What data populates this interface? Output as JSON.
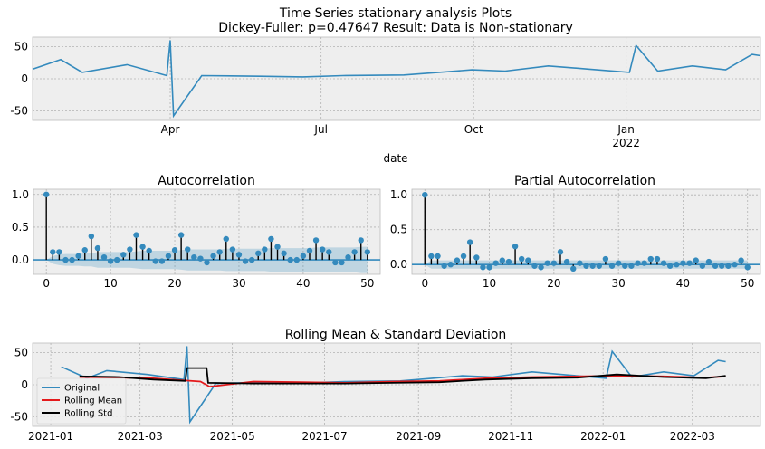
{
  "figure": {
    "suptitle_line1": "Time Series stationary analysis Plots",
    "suptitle_line2": "Dickey-Fuller: p=0.47647 Result: Data is Non-stationary"
  },
  "chart_data": [
    {
      "type": "line",
      "id": "timeseries",
      "title": "",
      "xlabel": "date",
      "ylabel": "",
      "x_range": [
        "2021-01-08",
        "2022-03-23"
      ],
      "ylim": [
        -65,
        65
      ],
      "yticks": [
        -50,
        0,
        50
      ],
      "xtick_labels": [
        {
          "date": "2021-04-01",
          "label": "Apr",
          "sublabel": ""
        },
        {
          "date": "2021-07-01",
          "label": "Jul",
          "sublabel": ""
        },
        {
          "date": "2021-10-01",
          "label": "Oct",
          "sublabel": ""
        },
        {
          "date": "2022-01-01",
          "label": "Jan",
          "sublabel": "2022"
        }
      ],
      "grid": true,
      "series": [
        {
          "name": "",
          "color": "#348abd",
          "x": [
            "2021-01-08",
            "2021-01-25",
            "2021-02-07",
            "2021-03-06",
            "2021-03-30",
            "2021-04-01",
            "2021-04-03",
            "2021-04-20",
            "2021-05-25",
            "2021-06-20",
            "2021-07-14",
            "2021-08-20",
            "2021-09-10",
            "2021-09-30",
            "2021-10-20",
            "2021-11-15",
            "2021-12-10",
            "2022-01-03",
            "2022-01-07",
            "2022-01-20",
            "2022-02-10",
            "2022-03-02",
            "2022-03-18",
            "2022-03-23"
          ],
          "y": [
            15,
            30,
            10,
            22,
            5,
            60,
            -58,
            5,
            4,
            3,
            5,
            6,
            10,
            14,
            12,
            20,
            15,
            10,
            52,
            12,
            20,
            14,
            38,
            36
          ]
        }
      ]
    },
    {
      "type": "stem",
      "id": "acf",
      "title": "Autocorrelation",
      "xlim": [
        -2,
        52
      ],
      "ylim": [
        -0.22,
        1.08
      ],
      "xticks": [
        0,
        10,
        20,
        30,
        40,
        50
      ],
      "yticks": [
        0.0,
        0.5,
        1.0
      ],
      "ytick_labels": [
        "0.0",
        "0.5",
        "1.0"
      ],
      "grid": true,
      "lags": [
        0,
        1,
        2,
        3,
        4,
        5,
        6,
        7,
        8,
        9,
        10,
        11,
        12,
        13,
        14,
        15,
        16,
        17,
        18,
        19,
        20,
        21,
        22,
        23,
        24,
        25,
        26,
        27,
        28,
        29,
        30,
        31,
        32,
        33,
        34,
        35,
        36,
        37,
        38,
        39,
        40,
        41,
        42,
        43,
        44,
        45,
        46,
        47,
        48,
        49,
        50
      ],
      "values": [
        1.0,
        0.12,
        0.12,
        0.0,
        0.0,
        0.06,
        0.15,
        0.36,
        0.18,
        0.04,
        -0.02,
        0.0,
        0.08,
        0.16,
        0.38,
        0.2,
        0.14,
        -0.02,
        -0.02,
        0.06,
        0.15,
        0.38,
        0.16,
        0.04,
        0.02,
        -0.04,
        0.06,
        0.12,
        0.32,
        0.16,
        0.08,
        -0.02,
        0.0,
        0.1,
        0.16,
        0.32,
        0.2,
        0.1,
        0.0,
        0.0,
        0.06,
        0.14,
        0.3,
        0.16,
        0.12,
        -0.04,
        -0.04,
        0.04,
        0.12,
        0.3,
        0.12
      ],
      "confint_upper": [
        0.0,
        0.06,
        0.08,
        0.09,
        0.09,
        0.09,
        0.1,
        0.1,
        0.12,
        0.12,
        0.12,
        0.12,
        0.12,
        0.12,
        0.13,
        0.14,
        0.14,
        0.14,
        0.14,
        0.14,
        0.14,
        0.15,
        0.16,
        0.16,
        0.16,
        0.16,
        0.16,
        0.16,
        0.17,
        0.17,
        0.17,
        0.17,
        0.17,
        0.17,
        0.17,
        0.18,
        0.18,
        0.18,
        0.18,
        0.18,
        0.18,
        0.18,
        0.19,
        0.19,
        0.19,
        0.19,
        0.19,
        0.19,
        0.19,
        0.2,
        0.2
      ],
      "color": "#348abd"
    },
    {
      "type": "stem",
      "id": "pacf",
      "title": "Partial Autocorrelation",
      "xlim": [
        -2,
        52
      ],
      "ylim": [
        -0.14,
        1.08
      ],
      "xticks": [
        0,
        10,
        20,
        30,
        40,
        50
      ],
      "yticks": [
        0.0,
        0.5,
        1.0
      ],
      "ytick_labels": [
        "0.0",
        "0.5",
        "1.0"
      ],
      "grid": true,
      "lags": [
        0,
        1,
        2,
        3,
        4,
        5,
        6,
        7,
        8,
        9,
        10,
        11,
        12,
        13,
        14,
        15,
        16,
        17,
        18,
        19,
        20,
        21,
        22,
        23,
        24,
        25,
        26,
        27,
        28,
        29,
        30,
        31,
        32,
        33,
        34,
        35,
        36,
        37,
        38,
        39,
        40,
        41,
        42,
        43,
        44,
        45,
        46,
        47,
        48,
        49,
        50
      ],
      "values": [
        1.0,
        0.12,
        0.12,
        -0.02,
        0.0,
        0.06,
        0.12,
        0.32,
        0.1,
        -0.04,
        -0.04,
        0.02,
        0.06,
        0.04,
        0.26,
        0.08,
        0.06,
        -0.02,
        -0.04,
        0.02,
        0.02,
        0.18,
        0.04,
        -0.06,
        0.02,
        -0.02,
        -0.02,
        -0.02,
        0.08,
        -0.02,
        0.02,
        -0.02,
        -0.02,
        0.02,
        0.02,
        0.08,
        0.08,
        0.02,
        -0.02,
        0.0,
        0.02,
        0.02,
        0.06,
        -0.02,
        0.04,
        -0.02,
        -0.02,
        -0.02,
        0.0,
        0.06,
        -0.04
      ],
      "confint_upper": [
        0.0,
        0.06,
        0.06,
        0.06,
        0.06,
        0.06,
        0.06,
        0.06,
        0.06,
        0.06,
        0.06,
        0.06,
        0.06,
        0.06,
        0.06,
        0.06,
        0.06,
        0.06,
        0.06,
        0.06,
        0.06,
        0.06,
        0.06,
        0.06,
        0.06,
        0.06,
        0.06,
        0.06,
        0.06,
        0.06,
        0.06,
        0.06,
        0.06,
        0.06,
        0.06,
        0.06,
        0.06,
        0.06,
        0.06,
        0.06,
        0.06,
        0.06,
        0.06,
        0.06,
        0.06,
        0.06,
        0.06,
        0.06,
        0.06,
        0.06,
        0.06
      ],
      "color": "#348abd"
    },
    {
      "type": "line",
      "id": "rolling",
      "title": "Rolling Mean & Standard Deviation",
      "x_range": [
        "2020-12-20",
        "2022-04-15"
      ],
      "ylim": [
        -65,
        65
      ],
      "yticks": [
        -50,
        0,
        50
      ],
      "xticks": [
        "2021-01-01",
        "2021-03-01",
        "2021-05-01",
        "2021-07-01",
        "2021-09-01",
        "2021-11-01",
        "2022-01-01",
        "2022-03-01"
      ],
      "xtick_labels": [
        "2021-01",
        "2021-03",
        "2021-05",
        "2021-07",
        "2021-09",
        "2021-11",
        "2022-01",
        "2022-03"
      ],
      "grid": true,
      "legend_position": "lower-left",
      "series": [
        {
          "name": "Original",
          "color": "#348abd",
          "width": 1.6,
          "x": [
            "2021-01-08",
            "2021-01-25",
            "2021-02-07",
            "2021-03-06",
            "2021-03-30",
            "2021-04-01",
            "2021-04-03",
            "2021-04-20",
            "2021-05-25",
            "2021-06-20",
            "2021-07-14",
            "2021-08-20",
            "2021-09-10",
            "2021-09-30",
            "2021-10-20",
            "2021-11-15",
            "2021-12-10",
            "2022-01-03",
            "2022-01-07",
            "2022-01-20",
            "2022-02-10",
            "2022-03-02",
            "2022-03-18",
            "2022-03-23"
          ],
          "y": [
            28,
            10,
            22,
            16,
            8,
            60,
            -58,
            2,
            4,
            3,
            5,
            6,
            10,
            14,
            12,
            20,
            15,
            10,
            52,
            12,
            20,
            14,
            38,
            36
          ]
        },
        {
          "name": "Rolling Mean",
          "color": "#e41a1c",
          "width": 1.8,
          "x": [
            "2021-01-20",
            "2021-02-15",
            "2021-03-10",
            "2021-04-10",
            "2021-04-16",
            "2021-05-15",
            "2021-06-15",
            "2021-07-15",
            "2021-08-15",
            "2021-09-15",
            "2021-10-15",
            "2021-11-15",
            "2021-12-15",
            "2022-01-10",
            "2022-02-10",
            "2022-03-10",
            "2022-03-23"
          ],
          "y": [
            12,
            11,
            10,
            5,
            -3,
            5,
            4,
            3,
            5,
            6,
            10,
            12,
            13,
            14,
            13,
            11,
            13
          ]
        },
        {
          "name": "Rolling Std",
          "color": "#000000",
          "width": 1.8,
          "x": [
            "2021-01-20",
            "2021-02-15",
            "2021-03-10",
            "2021-03-31",
            "2021-04-01",
            "2021-04-14",
            "2021-04-15",
            "2021-05-15",
            "2021-06-15",
            "2021-07-15",
            "2021-08-15",
            "2021-09-15",
            "2021-10-15",
            "2021-11-15",
            "2021-12-15",
            "2022-01-10",
            "2022-02-10",
            "2022-03-10",
            "2022-03-23"
          ],
          "y": [
            13,
            12,
            8,
            6,
            26,
            26,
            3,
            2,
            2,
            2,
            3,
            4,
            8,
            10,
            11,
            16,
            12,
            10,
            14
          ]
        }
      ]
    }
  ]
}
